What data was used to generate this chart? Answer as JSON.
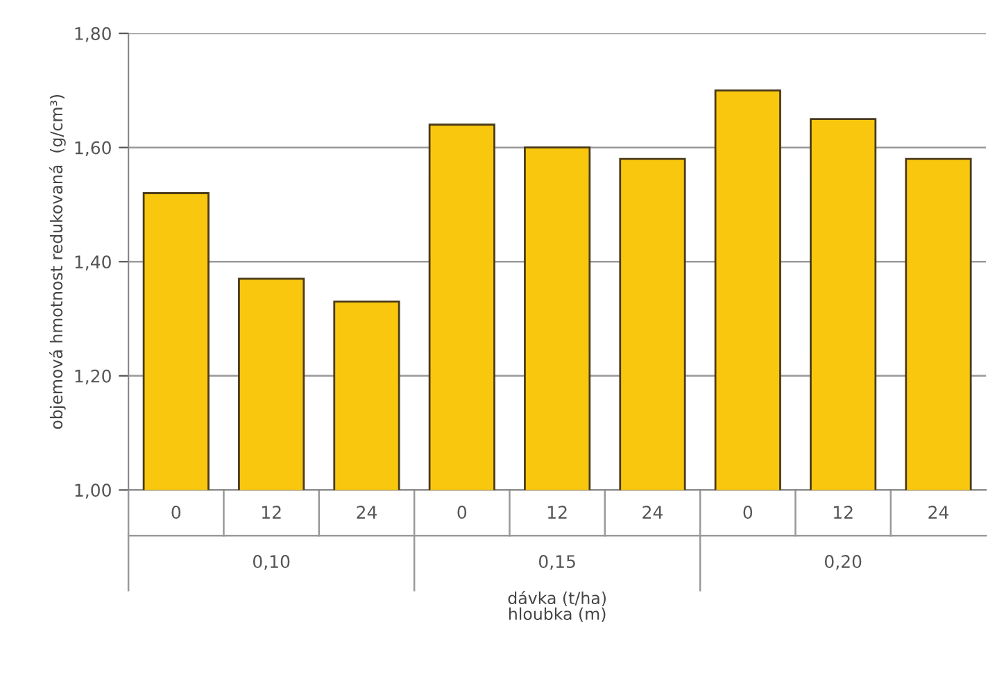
{
  "chart_data": {
    "type": "bar",
    "categories": [
      "0",
      "12",
      "24",
      "0",
      "12",
      "24",
      "0",
      "12",
      "24"
    ],
    "values": [
      1.52,
      1.37,
      1.33,
      1.64,
      1.6,
      1.58,
      1.7,
      1.65,
      1.58
    ],
    "color": "#f9c80e",
    "ylabel": "objemová hmotnost redukovaná  (g/cm³)",
    "xlabel": "dávka (t/ha)\nhloubka (m)",
    "annotations": [
      "0,10",
      "0,15",
      "0,20"
    ],
    "ylim": [
      1.0,
      1.8
    ],
    "yticks": [
      {
        "value": 1.0,
        "label": "1,00"
      },
      {
        "value": 1.2,
        "label": "1,20"
      },
      {
        "value": 1.4,
        "label": "1,40"
      },
      {
        "value": 1.6,
        "label": "1,60"
      },
      {
        "value": 1.8,
        "label": "1,80"
      }
    ],
    "grid": "y",
    "legend": false
  }
}
